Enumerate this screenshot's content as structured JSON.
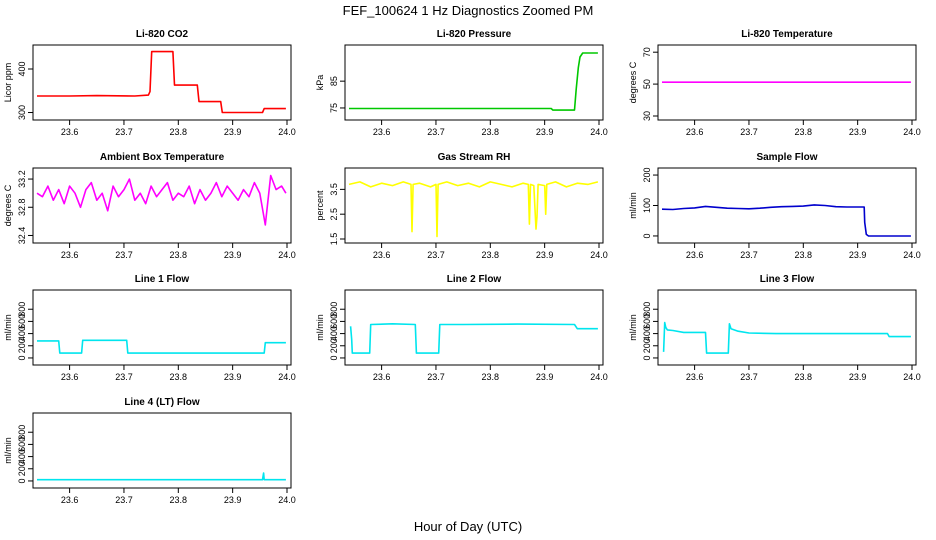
{
  "figure": {
    "title": "FEF_100624  1 Hz Diagnostics Zoomed PM",
    "xlabel": "Hour of Day (UTC)"
  },
  "chart_data": [
    {
      "id": "co2",
      "type": "line",
      "title": "Li-820 CO2",
      "ylabel": "Licor ppm",
      "color": "#ff0000",
      "xlim": [
        23.54,
        24.0
      ],
      "ylim": [
        292,
        446
      ],
      "xticks": [
        23.6,
        23.7,
        23.8,
        23.9,
        24.0
      ],
      "yticks": [
        300,
        400
      ],
      "series": [
        {
          "name": "CO2",
          "x": [
            23.54,
            23.6,
            23.65,
            23.72,
            23.745,
            23.748,
            23.751,
            23.79,
            23.793,
            23.835,
            23.838,
            23.878,
            23.881,
            23.955,
            23.958,
            23.998
          ],
          "y": [
            338,
            338,
            339,
            338,
            340,
            348,
            440,
            440,
            363,
            363,
            325,
            325,
            300,
            300,
            309,
            309
          ]
        }
      ]
    },
    {
      "id": "pressure",
      "type": "line",
      "title": "Li-820 Pressure",
      "ylabel": "kPa",
      "color": "#00c800",
      "xlim": [
        23.54,
        24.0
      ],
      "ylim": [
        72,
        97
      ],
      "xticks": [
        23.6,
        23.7,
        23.8,
        23.9,
        24.0
      ],
      "yticks": [
        75,
        85
      ],
      "series": [
        {
          "name": "Pressure",
          "x": [
            23.54,
            23.7,
            23.8,
            23.912,
            23.915,
            23.955,
            23.958,
            23.962,
            23.965,
            23.97,
            23.998
          ],
          "y": [
            74.8,
            74.8,
            74.8,
            74.8,
            74.2,
            74.2,
            82,
            90,
            94,
            95.5,
            95.5
          ]
        }
      ]
    },
    {
      "id": "licor_temp",
      "type": "line",
      "title": "Li-820 Temperature",
      "ylabel": "degrees C",
      "color": "#ff00ff",
      "xlim": [
        23.54,
        24.0
      ],
      "ylim": [
        30,
        72
      ],
      "xticks": [
        23.6,
        23.7,
        23.8,
        23.9,
        24.0
      ],
      "yticks": [
        30,
        50,
        70
      ],
      "series": [
        {
          "name": "Temperature",
          "x": [
            23.54,
            23.998
          ],
          "y": [
            51.2,
            51.2
          ]
        }
      ]
    },
    {
      "id": "box_temp",
      "type": "line",
      "title": "Ambient Box Temperature",
      "ylabel": "degrees C",
      "color": "#ff00ff",
      "xlim": [
        23.54,
        24.0
      ],
      "ylim": [
        32.35,
        33.3
      ],
      "xticks": [
        23.6,
        23.7,
        23.8,
        23.9,
        24.0
      ],
      "yticks": [
        32.4,
        32.8,
        33.2
      ],
      "series": [
        {
          "name": "Box temperature",
          "x": [
            23.54,
            23.55,
            23.56,
            23.57,
            23.58,
            23.59,
            23.6,
            23.61,
            23.62,
            23.63,
            23.64,
            23.65,
            23.66,
            23.67,
            23.68,
            23.69,
            23.7,
            23.71,
            23.72,
            23.73,
            23.74,
            23.75,
            23.76,
            23.77,
            23.78,
            23.79,
            23.8,
            23.81,
            23.82,
            23.83,
            23.84,
            23.85,
            23.86,
            23.87,
            23.88,
            23.89,
            23.9,
            23.91,
            23.92,
            23.93,
            23.94,
            23.95,
            23.96,
            23.97,
            23.98,
            23.99,
            23.998
          ],
          "y": [
            33.0,
            32.95,
            33.1,
            32.9,
            33.05,
            32.85,
            33.1,
            33.0,
            32.8,
            33.05,
            33.15,
            32.9,
            33.0,
            32.75,
            33.1,
            32.95,
            33.05,
            33.2,
            32.9,
            33.0,
            32.85,
            33.1,
            32.95,
            33.05,
            33.15,
            32.9,
            33.0,
            32.95,
            33.1,
            32.85,
            33.05,
            32.9,
            33.0,
            33.15,
            32.95,
            33.1,
            33.0,
            32.9,
            33.05,
            32.95,
            33.15,
            33.0,
            32.55,
            33.25,
            33.05,
            33.1,
            33.0
          ]
        }
      ]
    },
    {
      "id": "rh",
      "type": "line",
      "title": "Gas Stream RH",
      "ylabel": "percent",
      "color": "#ffff00",
      "xlim": [
        23.54,
        24.0
      ],
      "ylim": [
        1.5,
        4.2
      ],
      "xticks": [
        23.6,
        23.7,
        23.8,
        23.9,
        24.0
      ],
      "yticks": [
        1.5,
        2.5,
        3.5
      ],
      "series": [
        {
          "name": "RH",
          "x": [
            23.54,
            23.56,
            23.58,
            23.6,
            23.62,
            23.64,
            23.654,
            23.656,
            23.658,
            23.67,
            23.69,
            23.7,
            23.702,
            23.704,
            23.72,
            23.74,
            23.76,
            23.78,
            23.8,
            23.82,
            23.84,
            23.86,
            23.87,
            23.872,
            23.874,
            23.88,
            23.884,
            23.886,
            23.888,
            23.9,
            23.902,
            23.904,
            23.92,
            23.94,
            23.96,
            23.98,
            23.998
          ],
          "y": [
            3.7,
            3.8,
            3.6,
            3.75,
            3.65,
            3.8,
            3.7,
            1.8,
            3.7,
            3.75,
            3.6,
            3.7,
            1.6,
            3.7,
            3.8,
            3.65,
            3.75,
            3.6,
            3.8,
            3.7,
            3.6,
            3.75,
            3.7,
            2.1,
            3.7,
            3.65,
            1.9,
            2.4,
            3.7,
            3.65,
            2.5,
            3.7,
            3.8,
            3.6,
            3.75,
            3.7,
            3.8
          ]
        }
      ]
    },
    {
      "id": "sample_flow",
      "type": "line",
      "title": "Sample Flow",
      "ylabel": "ml/min",
      "color": "#0000cd",
      "xlim": [
        23.54,
        24.0
      ],
      "ylim": [
        -10,
        210
      ],
      "xticks": [
        23.6,
        23.7,
        23.8,
        23.9,
        24.0
      ],
      "yticks": [
        0,
        100,
        200
      ],
      "series": [
        {
          "name": "Sample flow",
          "x": [
            23.54,
            23.56,
            23.58,
            23.6,
            23.62,
            23.64,
            23.66,
            23.68,
            23.7,
            23.72,
            23.74,
            23.76,
            23.78,
            23.8,
            23.82,
            23.84,
            23.86,
            23.88,
            23.9,
            23.912,
            23.913,
            23.916,
            23.92,
            23.95,
            23.998
          ],
          "y": [
            88,
            87,
            90,
            92,
            97,
            94,
            91,
            90,
            89,
            91,
            94,
            96,
            97,
            98,
            102,
            100,
            96,
            95,
            95,
            95,
            45,
            5,
            0,
            0,
            0
          ]
        }
      ]
    },
    {
      "id": "line1",
      "type": "line",
      "title": "Line 1 Flow",
      "ylabel": "ml/min",
      "color": "#00e5ee",
      "xlim": [
        23.54,
        24.0
      ],
      "ylim": [
        -50,
        1050
      ],
      "xticks": [
        23.6,
        23.7,
        23.8,
        23.9,
        24.0
      ],
      "yticks": [
        0,
        200,
        400,
        600,
        800
      ],
      "series": [
        {
          "name": "Line 1",
          "x": [
            23.54,
            23.58,
            23.582,
            23.622,
            23.624,
            23.705,
            23.707,
            23.958,
            23.96,
            23.998
          ],
          "y": [
            280,
            280,
            80,
            80,
            290,
            290,
            80,
            80,
            250,
            250
          ]
        }
      ]
    },
    {
      "id": "line2",
      "type": "line",
      "title": "Line 2 Flow",
      "ylabel": "ml/min",
      "color": "#00e5ee",
      "xlim": [
        23.54,
        24.0
      ],
      "ylim": [
        -50,
        1050
      ],
      "xticks": [
        23.6,
        23.7,
        23.8,
        23.9,
        24.0
      ],
      "yticks": [
        0,
        200,
        400,
        600,
        800
      ],
      "series": [
        {
          "name": "Line 2",
          "x": [
            23.543,
            23.545,
            23.546,
            23.578,
            23.58,
            23.62,
            23.662,
            23.664,
            23.705,
            23.707,
            23.75,
            23.85,
            23.955,
            23.96,
            23.998
          ],
          "y": [
            520,
            300,
            80,
            80,
            550,
            560,
            550,
            80,
            80,
            550,
            550,
            555,
            550,
            480,
            480
          ]
        }
      ]
    },
    {
      "id": "line3",
      "type": "line",
      "title": "Line 3 Flow",
      "ylabel": "ml/min",
      "color": "#00e5ee",
      "xlim": [
        23.54,
        24.0
      ],
      "ylim": [
        -50,
        1050
      ],
      "xticks": [
        23.6,
        23.7,
        23.8,
        23.9,
        24.0
      ],
      "yticks": [
        0,
        200,
        400,
        600,
        800
      ],
      "series": [
        {
          "name": "Line 3",
          "x": [
            23.543,
            23.545,
            23.547,
            23.55,
            23.56,
            23.58,
            23.6,
            23.62,
            23.622,
            23.662,
            23.664,
            23.667,
            23.68,
            23.7,
            23.75,
            23.8,
            23.85,
            23.9,
            23.955,
            23.958,
            23.998
          ],
          "y": [
            100,
            580,
            500,
            460,
            450,
            420,
            420,
            420,
            80,
            80,
            560,
            480,
            440,
            410,
            400,
            400,
            400,
            400,
            400,
            350,
            350
          ]
        }
      ]
    },
    {
      "id": "line4",
      "type": "line",
      "title": "Line 4 (LT) Flow",
      "ylabel": "ml/min",
      "color": "#00e5ee",
      "xlim": [
        23.54,
        24.0
      ],
      "ylim": [
        -50,
        1050
      ],
      "xticks": [
        23.6,
        23.7,
        23.8,
        23.9,
        24.0
      ],
      "yticks": [
        0,
        200,
        400,
        600,
        800
      ],
      "series": [
        {
          "name": "Line 4",
          "x": [
            23.54,
            23.7,
            23.9,
            23.955,
            23.957,
            23.958,
            23.96,
            23.998
          ],
          "y": [
            20,
            20,
            20,
            20,
            130,
            20,
            20,
            20
          ]
        }
      ]
    }
  ]
}
